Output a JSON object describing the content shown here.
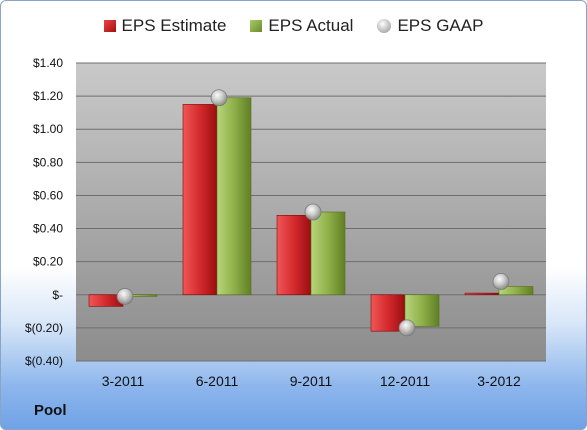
{
  "legend": {
    "estimate": "EPS Estimate",
    "actual": "EPS Actual",
    "gaap": "EPS GAAP"
  },
  "ticker": "Pool",
  "colors": {
    "estimate": "#d42a2d",
    "actual": "#8fb04a",
    "gaap": "#c8c8c8",
    "plot_background": "#9a9a9a"
  },
  "chart_data": {
    "type": "bar",
    "categories": [
      "3-2011",
      "6-2011",
      "9-2011",
      "12-2011",
      "3-2012"
    ],
    "series": [
      {
        "name": "EPS Estimate",
        "type": "bar",
        "values": [
          -0.07,
          1.15,
          0.48,
          -0.22,
          0.01
        ]
      },
      {
        "name": "EPS Actual",
        "type": "bar",
        "values": [
          -0.01,
          1.19,
          0.5,
          -0.19,
          0.05
        ]
      },
      {
        "name": "EPS GAAP",
        "type": "marker",
        "values": [
          -0.01,
          1.19,
          0.5,
          -0.2,
          0.08
        ]
      }
    ],
    "ylim": [
      -0.4,
      1.4
    ],
    "yticks": [
      -0.4,
      -0.2,
      0,
      0.2,
      0.4,
      0.6,
      0.8,
      1.0,
      1.2,
      1.4
    ],
    "ytick_labels": [
      "$(0.40)",
      "$(0.20)",
      "$-",
      "$0.20",
      "$0.40",
      "$0.60",
      "$0.80",
      "$1.00",
      "$1.20",
      "$1.40"
    ],
    "grid": true,
    "legend_position": "top"
  }
}
